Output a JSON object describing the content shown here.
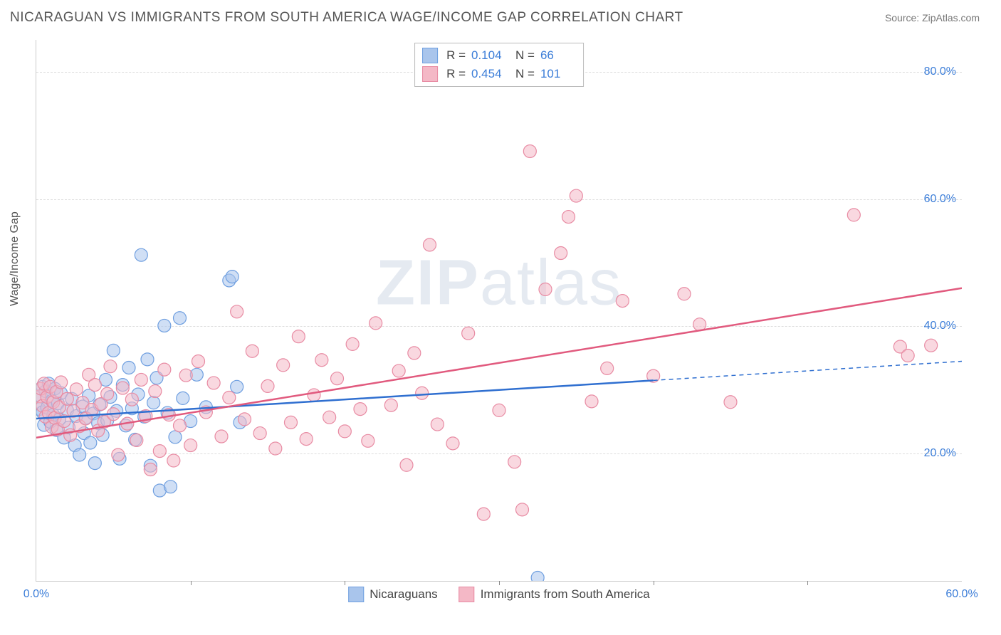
{
  "header": {
    "title": "NICARAGUAN VS IMMIGRANTS FROM SOUTH AMERICA WAGE/INCOME GAP CORRELATION CHART",
    "source": "Source: ZipAtlas.com"
  },
  "chart": {
    "type": "scatter",
    "ylabel": "Wage/Income Gap",
    "watermark": "ZIPatlas",
    "background_color": "#ffffff",
    "grid_color": "#dddddd",
    "axis_color": "#cccccc",
    "tick_color": "#3b7dd8",
    "xlim": [
      0,
      60
    ],
    "ylim": [
      0,
      85
    ],
    "xticks": [
      {
        "v": 0,
        "l": "0.0%"
      },
      {
        "v": 60,
        "l": "60.0%"
      }
    ],
    "yticks": [
      {
        "v": 20,
        "l": "20.0%"
      },
      {
        "v": 40,
        "l": "40.0%"
      },
      {
        "v": 60,
        "l": "60.0%"
      },
      {
        "v": 80,
        "l": "80.0%"
      }
    ],
    "xtick_marks": [
      10,
      20,
      30,
      40,
      50
    ],
    "marker_radius": 9,
    "marker_opacity": 0.55,
    "marker_stroke_width": 1.2,
    "line_width": 2.5,
    "series": [
      {
        "name": "Nicaraguans",
        "color_fill": "#a9c5ec",
        "color_stroke": "#6f9fe0",
        "line_color": "#2f6fd0",
        "r": "0.104",
        "n": "66",
        "trend": {
          "x1": 0,
          "y1": 25.5,
          "x2": 40,
          "y2": 31.5,
          "ext_x2": 60,
          "ext_y2": 34.5
        },
        "points": [
          [
            0.2,
            27
          ],
          [
            0.3,
            29
          ],
          [
            0.4,
            30.5
          ],
          [
            0.4,
            26.5
          ],
          [
            0.5,
            24.5
          ],
          [
            0.6,
            29.8
          ],
          [
            0.7,
            27.2
          ],
          [
            0.8,
            31
          ],
          [
            0.9,
            25
          ],
          [
            1.0,
            28.3
          ],
          [
            1.1,
            26.1
          ],
          [
            1.2,
            30.2
          ],
          [
            1.3,
            23.7
          ],
          [
            1.4,
            27.9
          ],
          [
            1.5,
            25.4
          ],
          [
            1.6,
            29.5
          ],
          [
            1.8,
            22.5
          ],
          [
            2.0,
            26.8
          ],
          [
            2.1,
            24.1
          ],
          [
            2.3,
            28.6
          ],
          [
            2.5,
            21.3
          ],
          [
            2.6,
            25.9
          ],
          [
            2.8,
            19.8
          ],
          [
            3.0,
            27.4
          ],
          [
            3.1,
            23.2
          ],
          [
            3.2,
            25.6
          ],
          [
            3.4,
            29.1
          ],
          [
            3.5,
            21.7
          ],
          [
            3.7,
            26.3
          ],
          [
            3.8,
            18.5
          ],
          [
            4.0,
            24.8
          ],
          [
            4.1,
            27.7
          ],
          [
            4.3,
            22.9
          ],
          [
            4.5,
            31.6
          ],
          [
            4.6,
            25.2
          ],
          [
            4.8,
            28.9
          ],
          [
            5.0,
            36.2
          ],
          [
            5.2,
            26.7
          ],
          [
            5.4,
            19.2
          ],
          [
            5.6,
            30.8
          ],
          [
            5.8,
            24.4
          ],
          [
            6.0,
            33.5
          ],
          [
            6.2,
            27.1
          ],
          [
            6.4,
            22.2
          ],
          [
            6.6,
            29.3
          ],
          [
            6.8,
            51.2
          ],
          [
            7.0,
            25.8
          ],
          [
            7.2,
            34.8
          ],
          [
            7.4,
            18.1
          ],
          [
            7.6,
            28.0
          ],
          [
            7.8,
            31.9
          ],
          [
            8.0,
            14.2
          ],
          [
            8.3,
            40.1
          ],
          [
            8.5,
            26.4
          ],
          [
            8.7,
            14.8
          ],
          [
            9.0,
            22.6
          ],
          [
            9.3,
            41.3
          ],
          [
            9.5,
            28.7
          ],
          [
            10.0,
            25.1
          ],
          [
            10.4,
            32.4
          ],
          [
            12.5,
            47.2
          ],
          [
            12.7,
            47.8
          ],
          [
            13.0,
            30.5
          ],
          [
            13.2,
            24.9
          ],
          [
            32.5,
            0.5
          ],
          [
            11.0,
            27.3
          ]
        ]
      },
      {
        "name": "Immigrants from South America",
        "color_fill": "#f4b8c6",
        "color_stroke": "#e88ba3",
        "line_color": "#e15a7e",
        "r": "0.454",
        "n": "101",
        "trend": {
          "x1": 0,
          "y1": 22.5,
          "x2": 60,
          "y2": 46.0
        },
        "points": [
          [
            0.2,
            29
          ],
          [
            0.3,
            30.2
          ],
          [
            0.4,
            27.5
          ],
          [
            0.5,
            31
          ],
          [
            0.6,
            25.8
          ],
          [
            0.7,
            28.9
          ],
          [
            0.8,
            26.4
          ],
          [
            0.9,
            30.5
          ],
          [
            1.0,
            24.2
          ],
          [
            1.1,
            28.1
          ],
          [
            1.2,
            25.6
          ],
          [
            1.3,
            29.7
          ],
          [
            1.4,
            23.8
          ],
          [
            1.5,
            27.3
          ],
          [
            1.6,
            31.2
          ],
          [
            1.8,
            25.1
          ],
          [
            2.0,
            28.6
          ],
          [
            2.2,
            22.9
          ],
          [
            2.4,
            26.7
          ],
          [
            2.6,
            30.1
          ],
          [
            2.8,
            24.3
          ],
          [
            3.0,
            28.0
          ],
          [
            3.2,
            25.5
          ],
          [
            3.4,
            32.4
          ],
          [
            3.6,
            26.9
          ],
          [
            3.8,
            30.8
          ],
          [
            4.0,
            23.6
          ],
          [
            4.2,
            27.8
          ],
          [
            4.4,
            25.0
          ],
          [
            4.6,
            29.4
          ],
          [
            4.8,
            33.7
          ],
          [
            5.0,
            26.2
          ],
          [
            5.3,
            19.8
          ],
          [
            5.6,
            30.3
          ],
          [
            5.9,
            24.7
          ],
          [
            6.2,
            28.5
          ],
          [
            6.5,
            22.1
          ],
          [
            6.8,
            31.6
          ],
          [
            7.1,
            25.9
          ],
          [
            7.4,
            17.5
          ],
          [
            7.7,
            29.8
          ],
          [
            8.0,
            20.4
          ],
          [
            8.3,
            33.2
          ],
          [
            8.6,
            26.1
          ],
          [
            8.9,
            18.9
          ],
          [
            9.3,
            24.4
          ],
          [
            9.7,
            32.3
          ],
          [
            10.0,
            21.3
          ],
          [
            10.5,
            34.5
          ],
          [
            11.0,
            26.5
          ],
          [
            11.5,
            31.1
          ],
          [
            12.0,
            22.7
          ],
          [
            12.5,
            28.8
          ],
          [
            13.0,
            42.3
          ],
          [
            13.5,
            25.4
          ],
          [
            14.0,
            36.1
          ],
          [
            14.5,
            23.2
          ],
          [
            15.0,
            30.6
          ],
          [
            15.5,
            20.8
          ],
          [
            16.0,
            33.9
          ],
          [
            16.5,
            24.9
          ],
          [
            17.0,
            38.4
          ],
          [
            17.5,
            22.3
          ],
          [
            18.0,
            29.2
          ],
          [
            18.5,
            34.7
          ],
          [
            19.0,
            25.7
          ],
          [
            19.5,
            31.8
          ],
          [
            20.0,
            23.5
          ],
          [
            20.5,
            37.2
          ],
          [
            21.0,
            27.0
          ],
          [
            21.5,
            22.0
          ],
          [
            22.0,
            40.5
          ],
          [
            23.0,
            27.6
          ],
          [
            23.5,
            33.0
          ],
          [
            24.0,
            18.2
          ],
          [
            24.5,
            35.8
          ],
          [
            25.0,
            29.5
          ],
          [
            25.5,
            52.8
          ],
          [
            26.0,
            24.6
          ],
          [
            27.0,
            21.6
          ],
          [
            28.0,
            38.9
          ],
          [
            29.0,
            10.5
          ],
          [
            30.0,
            26.8
          ],
          [
            31.0,
            18.7
          ],
          [
            31.5,
            11.2
          ],
          [
            32.0,
            67.5
          ],
          [
            33.0,
            45.8
          ],
          [
            34.0,
            51.5
          ],
          [
            34.5,
            57.2
          ],
          [
            35.0,
            60.5
          ],
          [
            36.0,
            28.2
          ],
          [
            37.0,
            33.4
          ],
          [
            38.0,
            44.0
          ],
          [
            40.0,
            32.2
          ],
          [
            42.0,
            45.1
          ],
          [
            43.0,
            40.3
          ],
          [
            45.0,
            28.1
          ],
          [
            53.0,
            57.5
          ],
          [
            56.0,
            36.8
          ],
          [
            56.5,
            35.4
          ],
          [
            58.0,
            37.0
          ]
        ]
      }
    ]
  }
}
